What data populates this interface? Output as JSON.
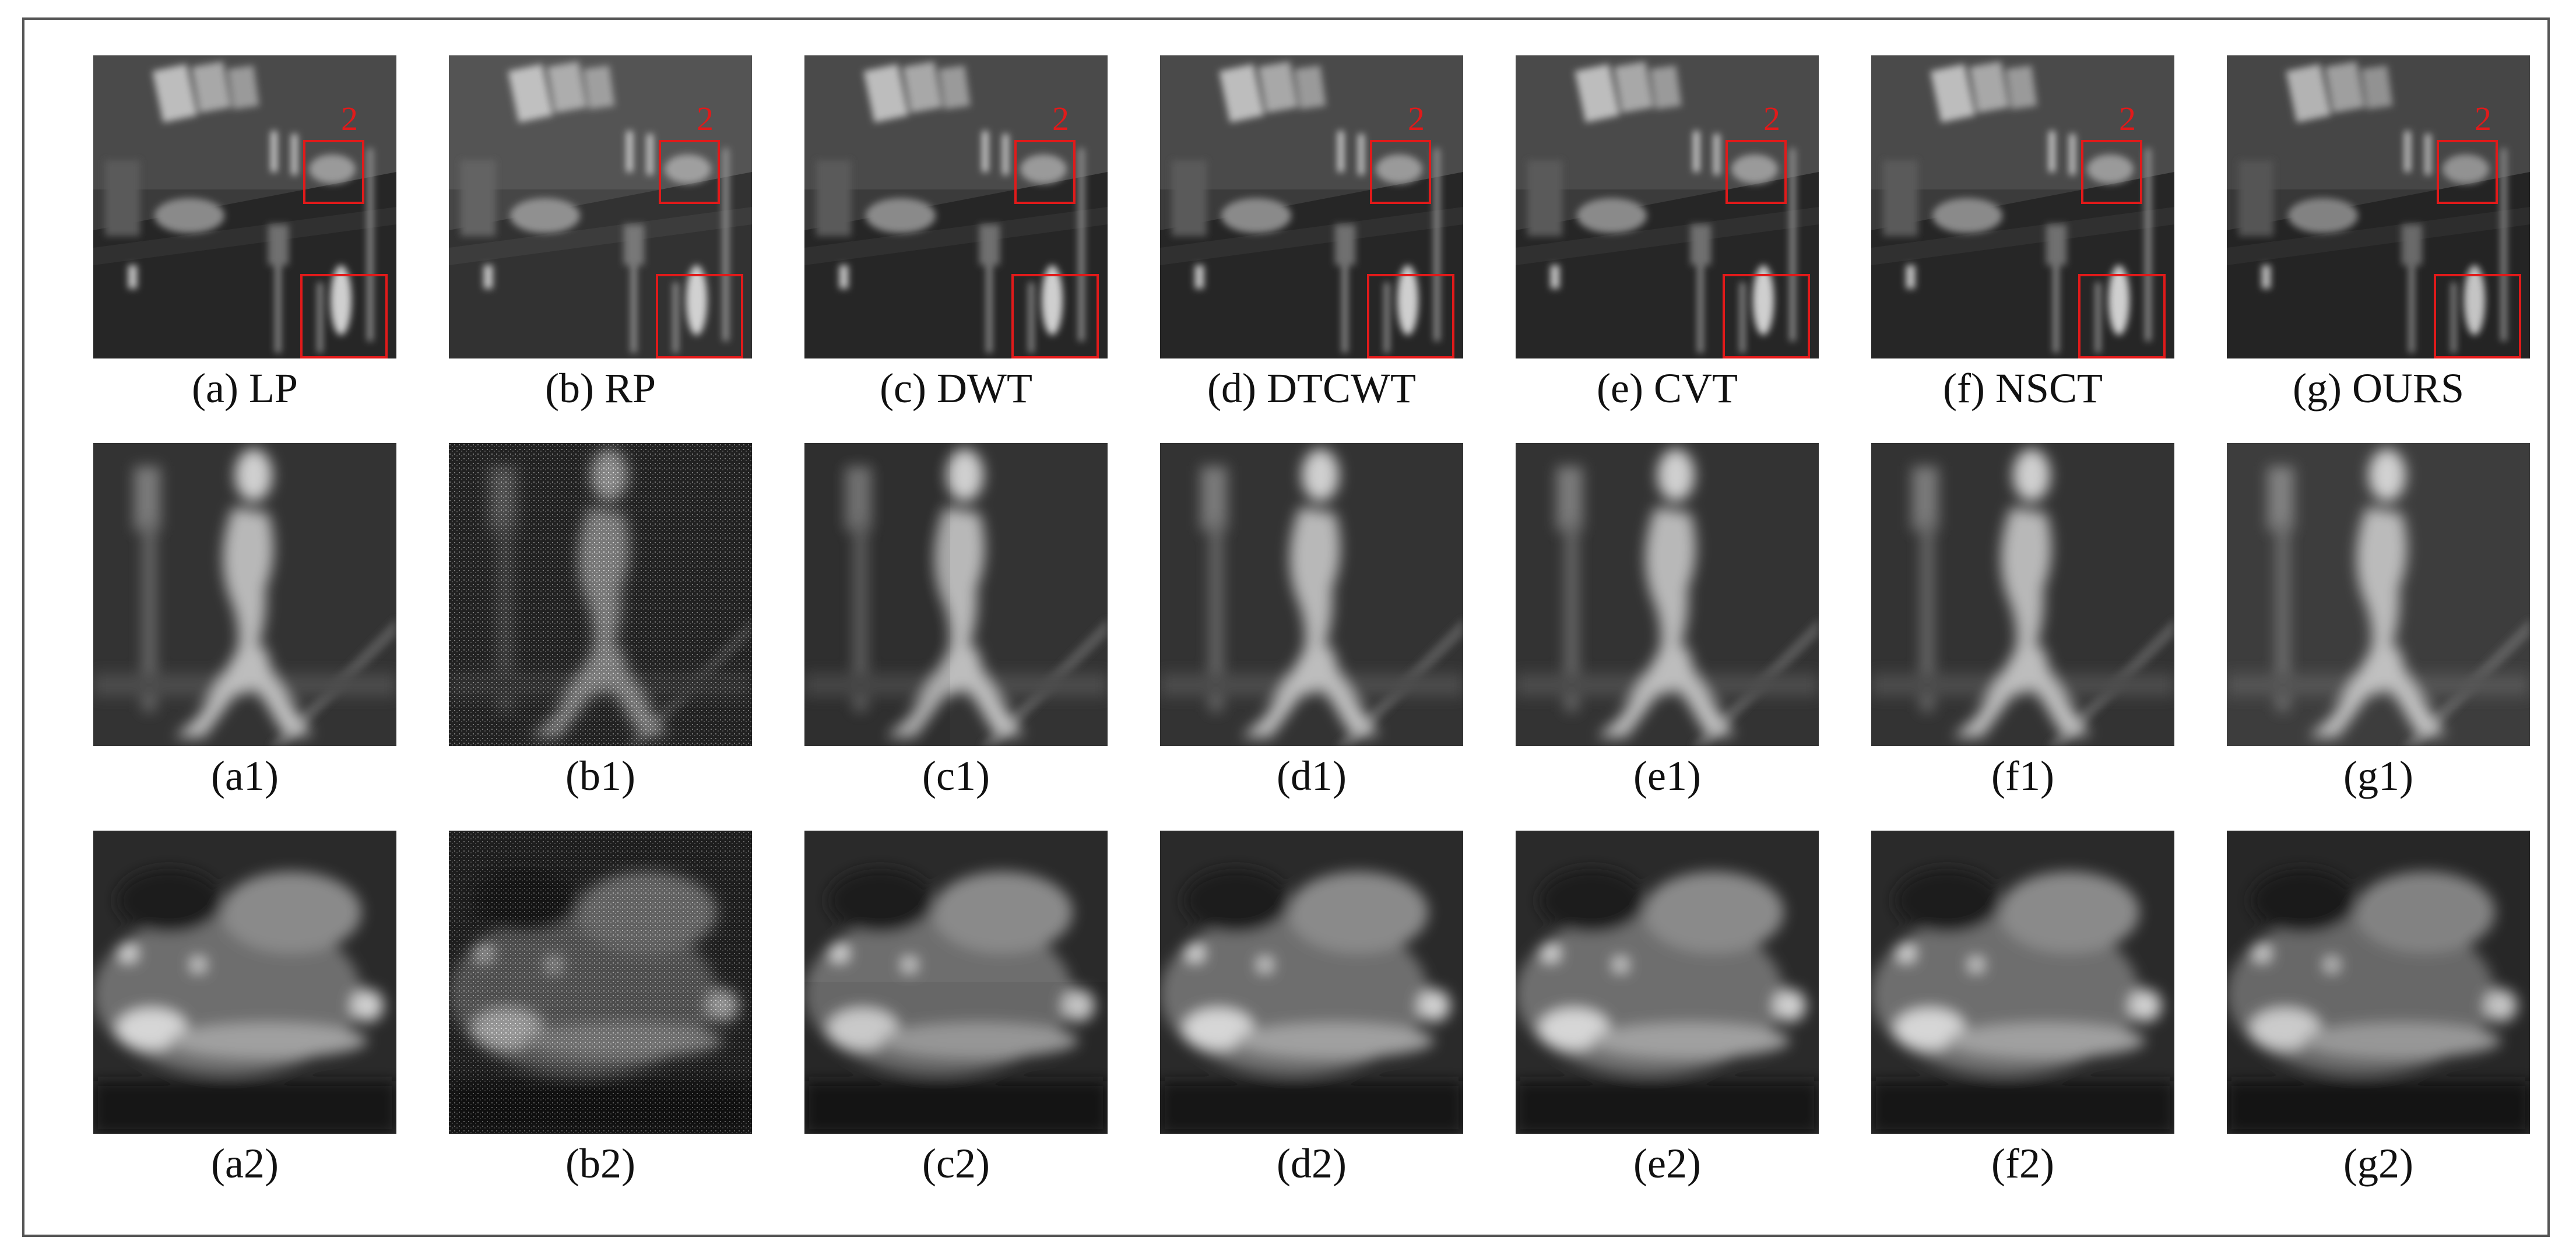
{
  "roi_number": "2",
  "rows": [
    {
      "kind": "scene",
      "panels": [
        {
          "caption": "(a) LP"
        },
        {
          "caption": "(b) RP"
        },
        {
          "caption": "(c) DWT"
        },
        {
          "caption": "(d) DTCWT"
        },
        {
          "caption": "(e) CVT"
        },
        {
          "caption": "(f) NSCT"
        },
        {
          "caption": "(g) OURS"
        }
      ]
    },
    {
      "kind": "pedestrian-crop",
      "panels": [
        {
          "caption": "(a1)"
        },
        {
          "caption": "(b1)"
        },
        {
          "caption": "(c1)"
        },
        {
          "caption": "(d1)"
        },
        {
          "caption": "(e1)"
        },
        {
          "caption": "(f1)"
        },
        {
          "caption": "(g1)"
        }
      ]
    },
    {
      "kind": "car-crop",
      "panels": [
        {
          "caption": "(a2)"
        },
        {
          "caption": "(b2)"
        },
        {
          "caption": "(c2)"
        },
        {
          "caption": "(d2)"
        },
        {
          "caption": "(e2)"
        },
        {
          "caption": "(f2)"
        },
        {
          "caption": "(g2)"
        }
      ]
    }
  ]
}
